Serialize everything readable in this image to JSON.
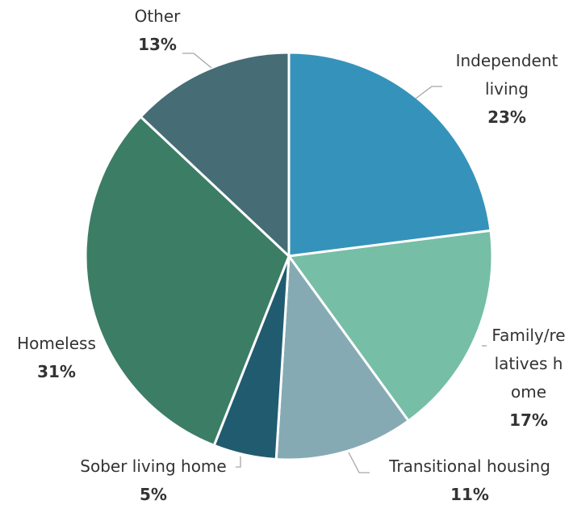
{
  "chart_data": {
    "type": "pie",
    "categories": [
      "Independent living",
      "Family/relatives home",
      "Transitional housing",
      "Sober living home",
      "Homeless",
      "Other"
    ],
    "values": [
      23,
      17,
      11,
      5,
      31,
      13
    ],
    "value_labels": [
      "23%",
      "17%",
      "11%",
      "5%",
      "31%",
      "13%"
    ],
    "colors": [
      "#3593bb",
      "#76bea6",
      "#86aab3",
      "#215b70",
      "#3c7d66",
      "#466d76"
    ]
  }
}
